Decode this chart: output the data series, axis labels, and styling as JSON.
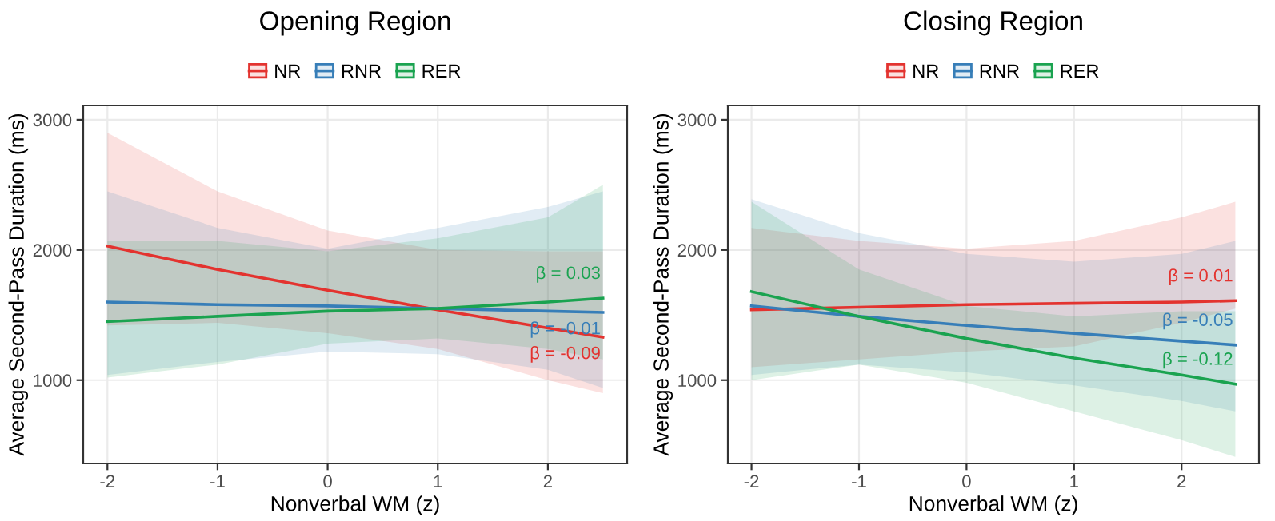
{
  "chart_data": [
    {
      "type": "line",
      "title": "Opening Region",
      "xlabel": "Nonverbal WM (z)",
      "ylabel": "Average Second-Pass Duration (ms)",
      "xlim": [
        -2.22,
        2.72
      ],
      "ylim": [
        360,
        3110
      ],
      "xticks": [
        -2,
        -1,
        0,
        1,
        2
      ],
      "yticks": [
        1000,
        2000,
        3000
      ],
      "grid": true,
      "legend": "top",
      "line_style": "solid",
      "series": [
        {
          "name": "NR",
          "color": "#e3332f",
          "x": [
            -2,
            -1,
            0,
            1,
            2,
            2.5
          ],
          "values": [
            2030,
            1850,
            1690,
            1540,
            1400,
            1330
          ],
          "lower": [
            1420,
            1440,
            1360,
            1240,
            1000,
            900
          ],
          "upper": [
            2900,
            2450,
            2150,
            2000,
            1990,
            1990
          ]
        },
        {
          "name": "RNR",
          "color": "#377eb8",
          "x": [
            -2,
            -1,
            0,
            1,
            2,
            2.5
          ],
          "values": [
            1600,
            1580,
            1570,
            1550,
            1530,
            1520
          ],
          "lower": [
            1040,
            1140,
            1220,
            1200,
            1080,
            940
          ],
          "upper": [
            2450,
            2170,
            2010,
            2170,
            2330,
            2450
          ]
        },
        {
          "name": "RER",
          "color": "#1aa350",
          "x": [
            -2,
            -1,
            0,
            1,
            2,
            2.5
          ],
          "values": [
            1450,
            1490,
            1530,
            1550,
            1600,
            1630
          ],
          "lower": [
            1020,
            1120,
            1280,
            1320,
            1240,
            1160
          ],
          "upper": [
            2070,
            2070,
            1990,
            2090,
            2250,
            2500
          ]
        }
      ],
      "annotations": [
        "β = -0.09",
        "β = -0.01",
        "β = 0.03"
      ]
    },
    {
      "type": "line",
      "title": "Closing Region",
      "xlabel": "Nonverbal WM (z)",
      "ylabel": "Average Second-Pass Duration (ms)",
      "xlim": [
        -2.22,
        2.72
      ],
      "ylim": [
        360,
        3110
      ],
      "xticks": [
        -2,
        -1,
        0,
        1,
        2
      ],
      "yticks": [
        1000,
        2000,
        3000
      ],
      "grid": true,
      "legend": "top",
      "line_style": "solid",
      "series": [
        {
          "name": "NR",
          "color": "#e3332f",
          "x": [
            -2,
            -1,
            0,
            1,
            2,
            2.5
          ],
          "values": [
            1540,
            1560,
            1580,
            1590,
            1600,
            1610
          ],
          "lower": [
            1100,
            1160,
            1220,
            1260,
            1440,
            1550
          ],
          "upper": [
            2170,
            2070,
            2010,
            2070,
            2250,
            2370
          ]
        },
        {
          "name": "RNR",
          "color": "#377eb8",
          "x": [
            -2,
            -1,
            0,
            1,
            2,
            2.5
          ],
          "values": [
            1570,
            1490,
            1420,
            1360,
            1300,
            1270
          ],
          "lower": [
            1040,
            1120,
            1060,
            960,
            840,
            760
          ],
          "upper": [
            2390,
            2130,
            1970,
            1910,
            1970,
            2070
          ]
        },
        {
          "name": "RER",
          "color": "#1aa350",
          "x": [
            -2,
            -1,
            0,
            1,
            2,
            2.5
          ],
          "values": [
            1680,
            1490,
            1320,
            1170,
            1040,
            970
          ],
          "lower": [
            1000,
            1120,
            980,
            760,
            540,
            410
          ],
          "upper": [
            2370,
            1850,
            1570,
            1490,
            1530,
            1530
          ]
        }
      ],
      "annotations": [
        "β = 0.01",
        "β = -0.05",
        "β = -0.12"
      ]
    }
  ]
}
